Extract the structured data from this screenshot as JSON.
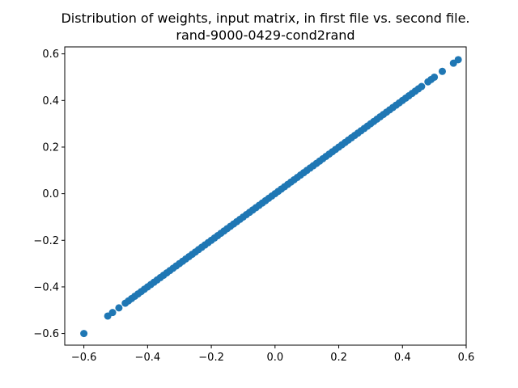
{
  "chart_data": {
    "type": "scatter",
    "title_lines": [
      "Distribution of weights, input matrix, in first file vs. second file.",
      "rand-9000-0429-cond2rand"
    ],
    "xlabel": "",
    "ylabel": "",
    "xlim": [
      -0.66,
      0.6
    ],
    "ylim": [
      -0.65,
      0.63
    ],
    "xticks": [
      -0.6,
      -0.4,
      -0.2,
      0.0,
      0.2,
      0.4,
      0.6
    ],
    "xtick_labels": [
      "−0.6",
      "−0.4",
      "−0.2",
      "0.0",
      "0.2",
      "0.4",
      "0.6"
    ],
    "yticks": [
      -0.6,
      -0.4,
      -0.2,
      0.0,
      0.2,
      0.4,
      0.6
    ],
    "ytick_labels": [
      "−0.6",
      "−0.4",
      "−0.2",
      "0.0",
      "0.2",
      "0.4",
      "0.6"
    ],
    "grid": false,
    "legend": "none",
    "marker_color": "#1f77b4",
    "series": [
      {
        "points": [
          [
            -0.6,
            -0.6
          ],
          [
            -0.525,
            -0.525
          ],
          [
            -0.51,
            -0.51
          ],
          [
            -0.49,
            -0.49
          ],
          [
            -0.47,
            -0.47
          ],
          [
            -0.46,
            -0.46
          ],
          [
            -0.45,
            -0.45
          ],
          [
            -0.44,
            -0.44
          ],
          [
            -0.43,
            -0.43
          ],
          [
            -0.42,
            -0.42
          ],
          [
            -0.41,
            -0.41
          ],
          [
            -0.4,
            -0.4
          ],
          [
            -0.39,
            -0.39
          ],
          [
            -0.38,
            -0.38
          ],
          [
            -0.37,
            -0.37
          ],
          [
            -0.36,
            -0.36
          ],
          [
            -0.35,
            -0.35
          ],
          [
            -0.34,
            -0.34
          ],
          [
            -0.33,
            -0.33
          ],
          [
            -0.32,
            -0.32
          ],
          [
            -0.31,
            -0.31
          ],
          [
            -0.3,
            -0.3
          ],
          [
            -0.29,
            -0.29
          ],
          [
            -0.28,
            -0.28
          ],
          [
            -0.27,
            -0.27
          ],
          [
            -0.26,
            -0.26
          ],
          [
            -0.25,
            -0.25
          ],
          [
            -0.24,
            -0.24
          ],
          [
            -0.23,
            -0.23
          ],
          [
            -0.22,
            -0.22
          ],
          [
            -0.21,
            -0.21
          ],
          [
            -0.2,
            -0.2
          ],
          [
            -0.19,
            -0.19
          ],
          [
            -0.18,
            -0.18
          ],
          [
            -0.17,
            -0.17
          ],
          [
            -0.16,
            -0.16
          ],
          [
            -0.15,
            -0.15
          ],
          [
            -0.14,
            -0.14
          ],
          [
            -0.13,
            -0.13
          ],
          [
            -0.12,
            -0.12
          ],
          [
            -0.11,
            -0.11
          ],
          [
            -0.1,
            -0.1
          ],
          [
            -0.09,
            -0.09
          ],
          [
            -0.08,
            -0.08
          ],
          [
            -0.07,
            -0.07
          ],
          [
            -0.06,
            -0.06
          ],
          [
            -0.05,
            -0.05
          ],
          [
            -0.04,
            -0.04
          ],
          [
            -0.03,
            -0.03
          ],
          [
            -0.02,
            -0.02
          ],
          [
            -0.01,
            -0.01
          ],
          [
            0.0,
            0.0
          ],
          [
            0.01,
            0.01
          ],
          [
            0.02,
            0.02
          ],
          [
            0.03,
            0.03
          ],
          [
            0.04,
            0.04
          ],
          [
            0.05,
            0.05
          ],
          [
            0.06,
            0.06
          ],
          [
            0.07,
            0.07
          ],
          [
            0.08,
            0.08
          ],
          [
            0.09,
            0.09
          ],
          [
            0.1,
            0.1
          ],
          [
            0.11,
            0.11
          ],
          [
            0.12,
            0.12
          ],
          [
            0.13,
            0.13
          ],
          [
            0.14,
            0.14
          ],
          [
            0.15,
            0.15
          ],
          [
            0.16,
            0.16
          ],
          [
            0.17,
            0.17
          ],
          [
            0.18,
            0.18
          ],
          [
            0.19,
            0.19
          ],
          [
            0.2,
            0.2
          ],
          [
            0.21,
            0.21
          ],
          [
            0.22,
            0.22
          ],
          [
            0.23,
            0.23
          ],
          [
            0.24,
            0.24
          ],
          [
            0.25,
            0.25
          ],
          [
            0.26,
            0.26
          ],
          [
            0.27,
            0.27
          ],
          [
            0.28,
            0.28
          ],
          [
            0.29,
            0.29
          ],
          [
            0.3,
            0.3
          ],
          [
            0.31,
            0.31
          ],
          [
            0.32,
            0.32
          ],
          [
            0.33,
            0.33
          ],
          [
            0.34,
            0.34
          ],
          [
            0.35,
            0.35
          ],
          [
            0.36,
            0.36
          ],
          [
            0.37,
            0.37
          ],
          [
            0.38,
            0.38
          ],
          [
            0.39,
            0.39
          ],
          [
            0.4,
            0.4
          ],
          [
            0.41,
            0.41
          ],
          [
            0.42,
            0.42
          ],
          [
            0.43,
            0.43
          ],
          [
            0.44,
            0.44
          ],
          [
            0.45,
            0.45
          ],
          [
            0.46,
            0.46
          ],
          [
            0.48,
            0.48
          ],
          [
            0.49,
            0.49
          ],
          [
            0.5,
            0.5
          ],
          [
            0.525,
            0.525
          ],
          [
            0.56,
            0.56
          ],
          [
            0.575,
            0.575
          ]
        ]
      }
    ]
  }
}
